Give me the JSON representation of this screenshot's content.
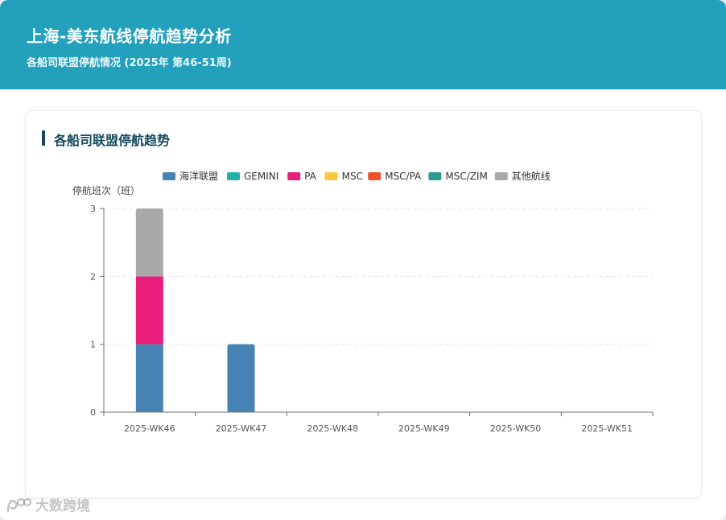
{
  "header": {
    "title": "上海-美东航线停航趋势分析",
    "subtitle": "各船司联盟停航情况 (2025年 第46-51周)"
  },
  "section": {
    "title": "各船司联盟停航趋势"
  },
  "watermark": {
    "text": "大数跨境",
    "icon": "brand-logo-icon"
  },
  "colors": {
    "header_bg": "#23a0bc",
    "section_accent": "#164a5c"
  },
  "chart_data": {
    "type": "bar",
    "stacked": true,
    "ylabel": "停航班次（班）",
    "xlabel": "",
    "ylim": [
      0,
      3
    ],
    "yticks": [
      0,
      1,
      2,
      3
    ],
    "grid": true,
    "legend_position": "top-center",
    "categories": [
      "2025-WK46",
      "2025-WK47",
      "2025-WK48",
      "2025-WK49",
      "2025-WK50",
      "2025-WK51"
    ],
    "series": [
      {
        "name": "海洋联盟",
        "color": "#4682b4",
        "values": [
          1,
          1,
          0,
          0,
          0,
          0
        ]
      },
      {
        "name": "GEMINI",
        "color": "#20b2aa",
        "values": [
          0,
          0,
          0,
          0,
          0,
          0
        ]
      },
      {
        "name": "PA",
        "color": "#e91e7a",
        "values": [
          1,
          0,
          0,
          0,
          0,
          0
        ]
      },
      {
        "name": "MSC",
        "color": "#f9c740",
        "values": [
          0,
          0,
          0,
          0,
          0,
          0
        ]
      },
      {
        "name": "MSC/PA",
        "color": "#f0522d",
        "values": [
          0,
          0,
          0,
          0,
          0,
          0
        ]
      },
      {
        "name": "MSC/ZIM",
        "color": "#2a9d8f",
        "values": [
          0,
          0,
          0,
          0,
          0,
          0
        ]
      },
      {
        "name": "其他航线",
        "color": "#a9a9a9",
        "values": [
          1,
          0,
          0,
          0,
          0,
          0
        ]
      }
    ]
  }
}
